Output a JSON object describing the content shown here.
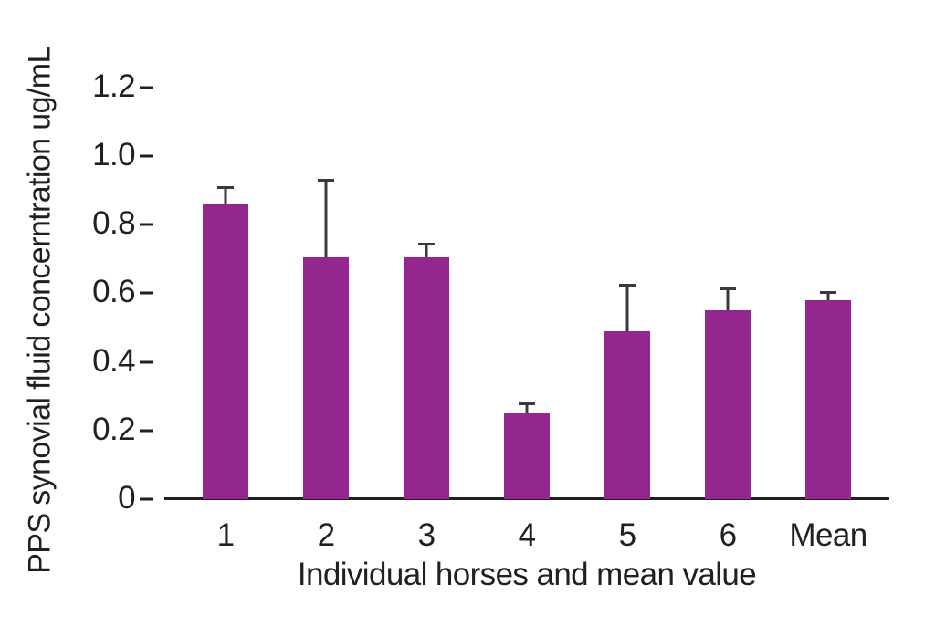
{
  "page": {
    "background": "#ffffff"
  },
  "chart_data": {
    "type": "bar",
    "title": "",
    "xlabel": "Individual horses and mean value",
    "ylabel": "PPS synovial fluid concerntration ug/mL",
    "categories": [
      "1",
      "2",
      "3",
      "4",
      "5",
      "6",
      "Mean"
    ],
    "values": [
      0.86,
      0.705,
      0.705,
      0.25,
      0.49,
      0.55,
      0.58
    ],
    "errors_upper": [
      0.05,
      0.225,
      0.04,
      0.03,
      0.135,
      0.065,
      0.025
    ],
    "ylim": [
      0,
      1.2
    ],
    "ytick_labels": [
      "0",
      "0.2",
      "0.4",
      "0.6",
      "0.8",
      "1.0",
      "1.2"
    ],
    "grid": false,
    "legend": "none",
    "bar_color": "#93278f",
    "error_bar_color": "#3a3a3c",
    "axis_color": "#231f20",
    "text_color": "#231f20"
  }
}
